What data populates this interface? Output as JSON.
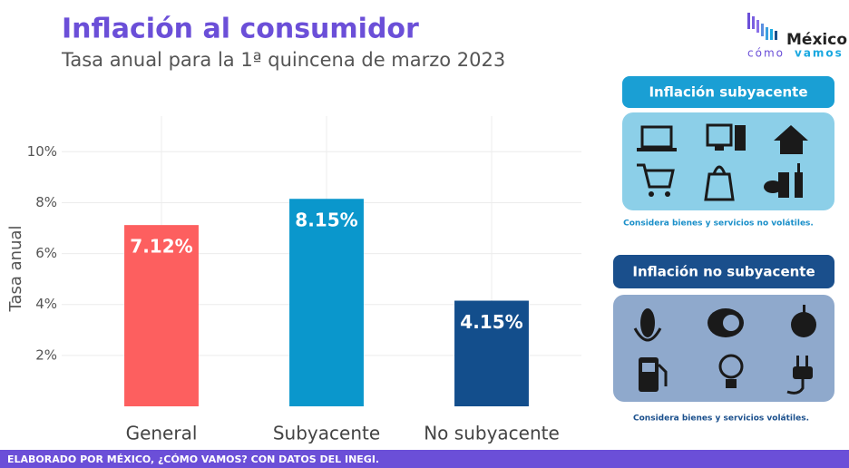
{
  "chart_data": {
    "type": "bar",
    "title": "Inflación al consumidor",
    "subtitle": "Tasa anual para la 1ª quincena de marzo 2023",
    "y_label": "Tasa anual",
    "categories": [
      "General",
      "Subyacente",
      "No subyacente"
    ],
    "values": [
      7.12,
      8.15,
      4.15
    ],
    "value_labels": [
      "7.12%",
      "8.15%",
      "4.15%"
    ],
    "colors": [
      "#fd5f5f",
      "#0a97cc",
      "#134e8c"
    ],
    "ylim": [
      0,
      11.4
    ],
    "yticks": [
      {
        "value": 2,
        "label": "2%"
      },
      {
        "value": 4,
        "label": "4%"
      },
      {
        "value": 6,
        "label": "6%"
      },
      {
        "value": 8,
        "label": "8%"
      },
      {
        "value": 10,
        "label": "10%"
      }
    ],
    "grid": true
  },
  "logo": {
    "line1": "México",
    "line2a": "cómo",
    "line2b": "vamos"
  },
  "panels": [
    {
      "title": "Inflación subyacente",
      "note": "Considera bienes y servicios no volátiles."
    },
    {
      "title": "Inflación no subyacente",
      "note": "Considera bienes y servicios volátiles."
    }
  ],
  "footer": "ELABORADO POR MÉXICO, ¿CÓMO VAMOS? CON DATOS DEL INEGI."
}
